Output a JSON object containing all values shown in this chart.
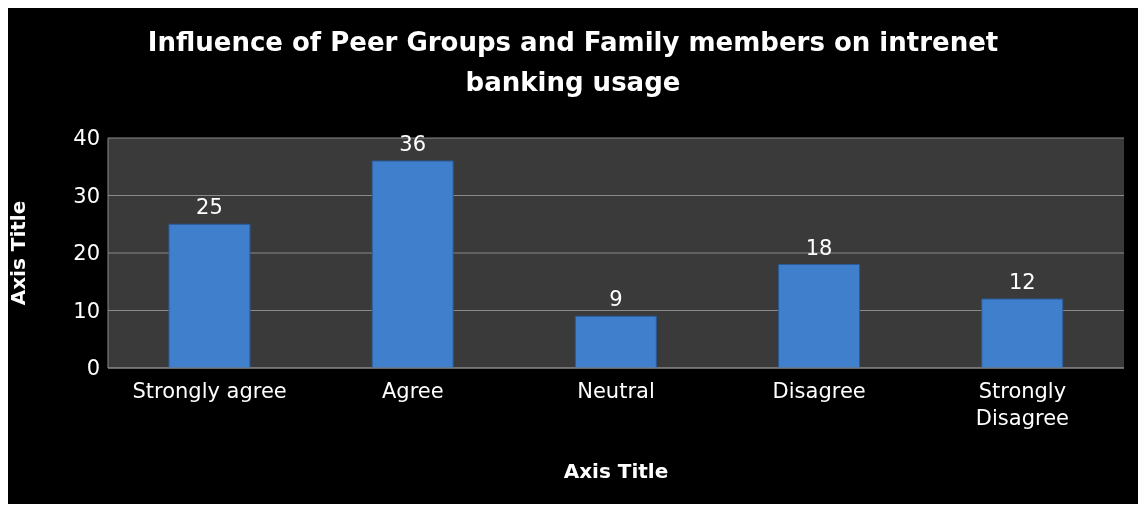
{
  "chart_data": {
    "type": "bar",
    "title": "Influence of Peer Groups and Family members on intrenet banking usage",
    "xlabel": "Axis Title",
    "ylabel": "Axis Title",
    "categories": [
      "Strongly agree",
      "Agree",
      "Neutral",
      "Disagree",
      "Strongly Disagree"
    ],
    "values": [
      25,
      36,
      9,
      18,
      12
    ],
    "color": "#3f7fcc",
    "ylim": [
      0,
      40
    ],
    "yticks": [
      0,
      10,
      20,
      30,
      40
    ],
    "grid": "y",
    "data_labels": true
  }
}
